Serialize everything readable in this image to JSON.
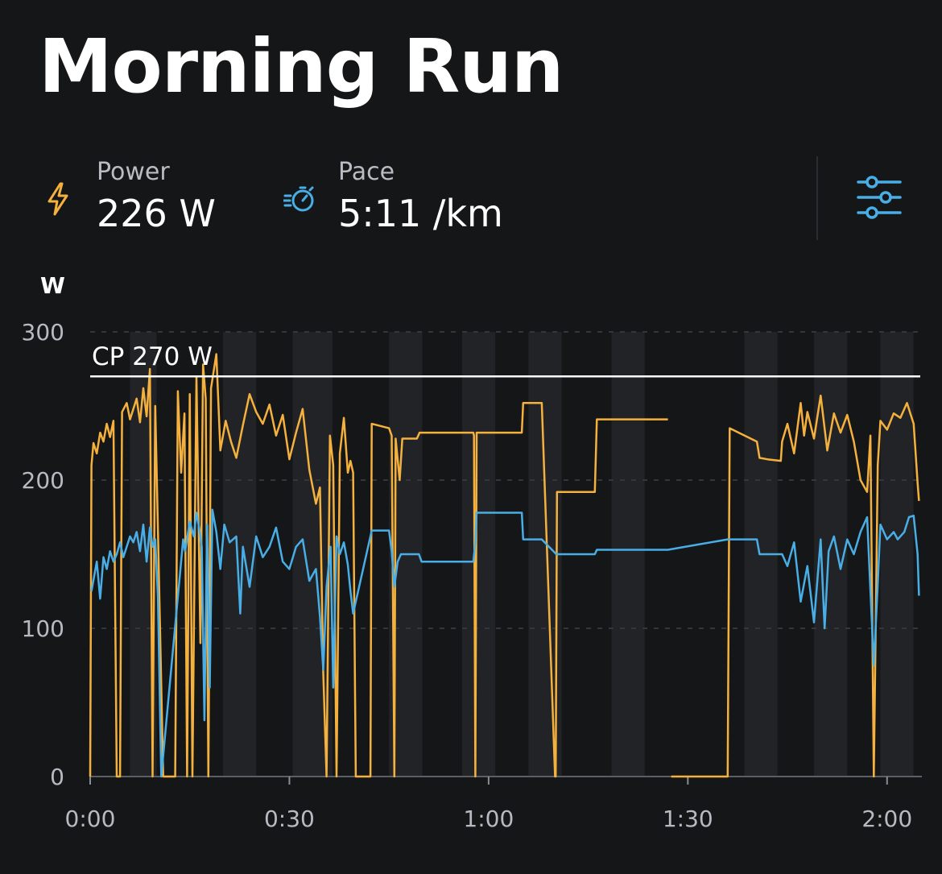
{
  "activity": {
    "title": "Morning Run"
  },
  "metrics": {
    "power": {
      "label": "Power",
      "value": "226 W",
      "icon": "lightning-icon",
      "color": "#f5b13e"
    },
    "pace": {
      "label": "Pace",
      "value": "5:11 /km",
      "icon": "stopwatch-icon",
      "color": "#4aaee6"
    }
  },
  "settings": {
    "icon": "sliders-icon",
    "color": "#4aaee6"
  },
  "chart_data": {
    "type": "line",
    "ylabel": "W",
    "ylim": [
      0,
      300
    ],
    "yticks": [
      0,
      100,
      200,
      300
    ],
    "xlim": [
      0,
      125
    ],
    "x_unit": "minutes",
    "xticks": [
      {
        "value": 0,
        "label": "0:00"
      },
      {
        "value": 30,
        "label": "0:30"
      },
      {
        "value": 60,
        "label": "1:00"
      },
      {
        "value": 90,
        "label": "1:30"
      },
      {
        "value": 120,
        "label": "2:00"
      }
    ],
    "grid": true,
    "reference_line": {
      "value": 270,
      "label": "CP 270 W",
      "color": "#ffffff"
    },
    "shaded_bands": [
      [
        6,
        10
      ],
      [
        20,
        25
      ],
      [
        30.5,
        36.5
      ],
      [
        45,
        50
      ],
      [
        56,
        61
      ],
      [
        66,
        71
      ],
      [
        78.5,
        83.5
      ],
      [
        98.5,
        103.5
      ],
      [
        109,
        114
      ],
      [
        119,
        124
      ]
    ],
    "series": [
      {
        "name": "Power",
        "color": "#f5b13e",
        "points": [
          [
            0,
            0
          ],
          [
            0.2,
            210
          ],
          [
            0.5,
            225
          ],
          [
            1,
            218
          ],
          [
            1.5,
            232
          ],
          [
            2,
            226
          ],
          [
            2.5,
            238
          ],
          [
            3,
            229
          ],
          [
            3.5,
            240
          ],
          [
            4,
            0
          ],
          [
            4.5,
            0
          ],
          [
            4.8,
            246
          ],
          [
            5.5,
            252
          ],
          [
            6,
            241
          ],
          [
            6.5,
            248
          ],
          [
            7,
            255
          ],
          [
            7.5,
            239
          ],
          [
            8,
            262
          ],
          [
            8.5,
            243
          ],
          [
            9,
            275
          ],
          [
            9.4,
            0
          ],
          [
            9.8,
            250
          ],
          [
            10.2,
            168
          ],
          [
            11,
            0
          ],
          [
            12,
            0
          ],
          [
            12.8,
            0
          ],
          [
            13.2,
            260
          ],
          [
            13.7,
            205
          ],
          [
            14.2,
            245
          ],
          [
            14.6,
            0
          ],
          [
            15,
            258
          ],
          [
            15.4,
            0
          ],
          [
            16,
            270
          ],
          [
            16.6,
            90
          ],
          [
            17,
            278
          ],
          [
            17.4,
            255
          ],
          [
            17.8,
            0
          ],
          [
            18.2,
            262
          ],
          [
            19,
            285
          ],
          [
            19.6,
            220
          ],
          [
            20.4,
            240
          ],
          [
            21.2,
            226
          ],
          [
            22,
            215
          ],
          [
            23,
            237
          ],
          [
            24,
            258
          ],
          [
            25,
            246
          ],
          [
            26,
            238
          ],
          [
            27,
            251
          ],
          [
            28,
            230
          ],
          [
            29,
            244
          ],
          [
            30,
            214
          ],
          [
            31,
            232
          ],
          [
            32,
            248
          ],
          [
            33,
            207
          ],
          [
            34,
            184
          ],
          [
            34.6,
            195
          ],
          [
            35.1,
            70
          ],
          [
            35.6,
            0
          ],
          [
            36.1,
            230
          ],
          [
            36.6,
            210
          ],
          [
            37.1,
            0
          ],
          [
            37.6,
            218
          ],
          [
            38.2,
            242
          ],
          [
            38.8,
            205
          ],
          [
            39.2,
            213
          ],
          [
            39.6,
            205
          ],
          [
            40,
            0
          ],
          [
            42,
            0
          ],
          [
            42.2,
            0
          ],
          [
            42.4,
            238
          ],
          [
            45,
            235
          ],
          [
            45.4,
            230
          ],
          [
            45.8,
            0
          ],
          [
            46,
            228
          ],
          [
            46.6,
            200
          ],
          [
            47,
            228
          ],
          [
            49.2,
            228
          ],
          [
            49.6,
            232
          ],
          [
            57.7,
            232
          ],
          [
            57.8,
            230
          ],
          [
            58,
            0
          ],
          [
            58.2,
            232
          ],
          [
            65,
            232
          ],
          [
            65.2,
            252
          ],
          [
            68,
            252
          ],
          [
            70,
            0
          ],
          [
            70.1,
            0
          ],
          [
            70.3,
            192
          ],
          [
            76,
            192
          ],
          [
            76.3,
            241
          ],
          [
            87,
            241
          ],
          [
            87,
            null
          ],
          [
            87.5,
            0
          ],
          [
            90,
            0
          ],
          [
            94,
            0
          ],
          [
            96,
            0
          ],
          [
            96.3,
            235
          ],
          [
            100.4,
            226
          ],
          [
            100.8,
            215
          ],
          [
            102,
            214
          ],
          [
            104,
            213
          ],
          [
            104.2,
            226
          ],
          [
            105,
            238
          ],
          [
            106,
            218
          ],
          [
            107,
            252
          ],
          [
            107.5,
            230
          ],
          [
            108,
            246
          ],
          [
            109,
            228
          ],
          [
            110,
            257
          ],
          [
            111,
            220
          ],
          [
            112,
            245
          ],
          [
            113,
            232
          ],
          [
            114,
            244
          ],
          [
            115,
            226
          ],
          [
            116,
            200
          ],
          [
            117,
            192
          ],
          [
            117.5,
            230
          ],
          [
            118,
            0
          ],
          [
            118.6,
            210
          ],
          [
            119,
            240
          ],
          [
            120,
            234
          ],
          [
            121,
            245
          ],
          [
            122,
            242
          ],
          [
            123,
            252
          ],
          [
            124,
            238
          ],
          [
            124.6,
            198
          ],
          [
            124.8,
            186
          ]
        ]
      },
      {
        "name": "Pace",
        "color": "#4aaee6",
        "points": [
          [
            0.2,
            125
          ],
          [
            0.6,
            135
          ],
          [
            1,
            145
          ],
          [
            1.5,
            120
          ],
          [
            2,
            148
          ],
          [
            2.5,
            140
          ],
          [
            3,
            152
          ],
          [
            3.5,
            145
          ],
          [
            4,
            150
          ],
          [
            4.5,
            158
          ],
          [
            5,
            148
          ],
          [
            5.5,
            155
          ],
          [
            6,
            162
          ],
          [
            6.5,
            158
          ],
          [
            7,
            165
          ],
          [
            7.5,
            152
          ],
          [
            8,
            170
          ],
          [
            8.5,
            145
          ],
          [
            9,
            168
          ],
          [
            9.4,
            155
          ],
          [
            9.8,
            160
          ],
          [
            10.2,
            122
          ],
          [
            10.7,
            0
          ],
          [
            14,
            160
          ],
          [
            14.3,
            152
          ],
          [
            15,
            172
          ],
          [
            15.6,
            162
          ],
          [
            16,
            178
          ],
          [
            16.4,
            168
          ],
          [
            16.8,
            155
          ],
          [
            17.2,
            38
          ],
          [
            17.6,
            170
          ],
          [
            18,
            60
          ],
          [
            18.4,
            180
          ],
          [
            19,
            165
          ],
          [
            19.6,
            140
          ],
          [
            20.2,
            170
          ],
          [
            21,
            158
          ],
          [
            22,
            162
          ],
          [
            22.6,
            110
          ],
          [
            23,
            155
          ],
          [
            24,
            128
          ],
          [
            25,
            162
          ],
          [
            26,
            148
          ],
          [
            27,
            155
          ],
          [
            28,
            168
          ],
          [
            29,
            145
          ],
          [
            30,
            140
          ],
          [
            31,
            155
          ],
          [
            32,
            160
          ],
          [
            33,
            132
          ],
          [
            34,
            140
          ],
          [
            34.6,
            108
          ],
          [
            35.1,
            72
          ],
          [
            35.6,
            128
          ],
          [
            36.2,
            155
          ],
          [
            36.6,
            60
          ],
          [
            37.1,
            162
          ],
          [
            37.6,
            150
          ],
          [
            38.2,
            158
          ],
          [
            38.8,
            143
          ],
          [
            39.2,
            125
          ],
          [
            39.6,
            110
          ],
          [
            42.4,
            166
          ],
          [
            45,
            166
          ],
          [
            45.4,
            152
          ],
          [
            45.8,
            128
          ],
          [
            46.3,
            145
          ],
          [
            46.8,
            150
          ],
          [
            49.5,
            150
          ],
          [
            49.9,
            145
          ],
          [
            57.7,
            145
          ],
          [
            58,
            158
          ],
          [
            58.2,
            178
          ],
          [
            65,
            178
          ],
          [
            65.2,
            160
          ],
          [
            68,
            160
          ],
          [
            70.2,
            150
          ],
          [
            76,
            150
          ],
          [
            76.3,
            153
          ],
          [
            87,
            153
          ],
          [
            96,
            160
          ],
          [
            100.4,
            160
          ],
          [
            100.8,
            150
          ],
          [
            104.2,
            150
          ],
          [
            105,
            142
          ],
          [
            106,
            158
          ],
          [
            107,
            118
          ],
          [
            108,
            142
          ],
          [
            109,
            104
          ],
          [
            110,
            160
          ],
          [
            110.6,
            100
          ],
          [
            111.2,
            152
          ],
          [
            112,
            162
          ],
          [
            113,
            140
          ],
          [
            114,
            160
          ],
          [
            115,
            150
          ],
          [
            116,
            165
          ],
          [
            117,
            175
          ],
          [
            118,
            75
          ],
          [
            118.6,
            130
          ],
          [
            119,
            170
          ],
          [
            120,
            160
          ],
          [
            121,
            165
          ],
          [
            121.6,
            160
          ],
          [
            122.6,
            165
          ],
          [
            123.3,
            175
          ],
          [
            124,
            176
          ],
          [
            124.6,
            150
          ],
          [
            124.8,
            122
          ]
        ]
      }
    ]
  }
}
